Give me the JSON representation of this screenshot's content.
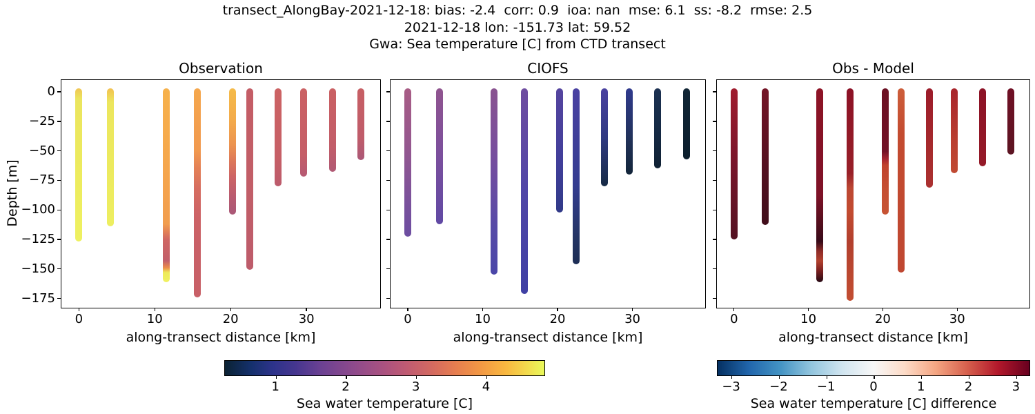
{
  "figure": {
    "title_line1": "transect_AlongBay-2021-12-18: bias: -2.4  corr: 0.9  ioa: nan  mse: 6.1  ss: -8.2  rmse: 2.5",
    "title_line2": "2021-12-18 lon: -151.73 lat: 59.52",
    "title_line3": "Gwa: Sea temperature [C] from CTD transect"
  },
  "chart_data": {
    "type": "scatter",
    "description": "Three-panel CTD transect depth profiles colored by sea water temperature; vertical profile bars at along-transect distances",
    "shared": {
      "xlabel": "along-transect distance [km]",
      "ylabel": "Depth [m]",
      "xticks": [
        0,
        10,
        20,
        30
      ],
      "yticks": [
        0,
        -25,
        -50,
        -75,
        -100,
        -125,
        -150,
        -175
      ],
      "xlim": [
        -2.3,
        39.9
      ],
      "ylim": [
        10,
        -184
      ],
      "grid": false
    },
    "panels": [
      {
        "title": "Observation",
        "profiles": [
          {
            "x_km": 0,
            "depth_top": 0,
            "depth_bottom": -124,
            "gradient": [
              [
                0,
                "#f0c654"
              ],
              [
                7,
                "#ebe55e"
              ],
              [
                60,
                "#edec5e"
              ],
              [
                100,
                "#eef161"
              ]
            ]
          },
          {
            "x_km": 4.2,
            "depth_top": 0,
            "depth_bottom": -111,
            "gradient": [
              [
                0,
                "#f2c150"
              ],
              [
                10,
                "#ece65d"
              ],
              [
                100,
                "#edee60"
              ]
            ]
          },
          {
            "x_km": 11.5,
            "depth_top": 0,
            "depth_bottom": -158,
            "gradient": [
              [
                0,
                "#f6b14b"
              ],
              [
                45,
                "#f5a54d"
              ],
              [
                70,
                "#f19d4e"
              ],
              [
                74,
                "#e28056"
              ],
              [
                78,
                "#cf6663"
              ],
              [
                89,
                "#c25f6a"
              ],
              [
                92.5,
                "#eb8c4b"
              ],
              [
                95,
                "#eeea59"
              ],
              [
                100,
                "#f0f161"
              ]
            ]
          },
          {
            "x_km": 15.6,
            "depth_top": 0,
            "depth_bottom": -171,
            "gradient": [
              [
                0,
                "#f5a74c"
              ],
              [
                30,
                "#f1994f"
              ],
              [
                38,
                "#e48156"
              ],
              [
                48,
                "#d66d60"
              ],
              [
                60,
                "#cd6366"
              ],
              [
                75,
                "#c96067"
              ],
              [
                100,
                "#c86067"
              ]
            ]
          },
          {
            "x_km": 20.3,
            "depth_top": 0,
            "depth_bottom": -101,
            "gradient": [
              [
                0,
                "#f5bb49"
              ],
              [
                25,
                "#f3ab4b"
              ],
              [
                45,
                "#ec9350"
              ],
              [
                57,
                "#dd7959"
              ],
              [
                70,
                "#cd6465"
              ],
              [
                85,
                "#ba5b6f"
              ],
              [
                100,
                "#a95877"
              ]
            ]
          },
          {
            "x_km": 22.5,
            "depth_top": 0,
            "depth_bottom": -148,
            "gradient": [
              [
                0,
                "#c45d66"
              ],
              [
                50,
                "#c25e67"
              ],
              [
                100,
                "#bd5c6b"
              ]
            ]
          },
          {
            "x_km": 26.3,
            "depth_top": 0,
            "depth_bottom": -77,
            "gradient": [
              [
                0,
                "#cc6263"
              ],
              [
                70,
                "#c65f66"
              ],
              [
                100,
                "#bc5b6c"
              ]
            ]
          },
          {
            "x_km": 29.6,
            "depth_top": 0,
            "depth_bottom": -69,
            "gradient": [
              [
                0,
                "#cb6164"
              ],
              [
                75,
                "#c55e67"
              ],
              [
                100,
                "#b55973"
              ]
            ]
          },
          {
            "x_km": 33.4,
            "depth_top": 0,
            "depth_bottom": -65,
            "gradient": [
              [
                0,
                "#ca6063"
              ],
              [
                70,
                "#c25d69"
              ],
              [
                100,
                "#b05974"
              ]
            ]
          },
          {
            "x_km": 37.2,
            "depth_top": 0,
            "depth_bottom": -55,
            "gradient": [
              [
                0,
                "#c75f64"
              ],
              [
                70,
                "#bf5c6a"
              ],
              [
                100,
                "#ab5877"
              ]
            ]
          }
        ]
      },
      {
        "title": "CIOFS",
        "profiles": [
          {
            "x_km": 0,
            "depth_top": 0,
            "depth_bottom": -120,
            "gradient": [
              [
                0,
                "#a85c85"
              ],
              [
                40,
                "#94578f"
              ],
              [
                75,
                "#7b519b"
              ],
              [
                100,
                "#6c4da1"
              ]
            ]
          },
          {
            "x_km": 4.2,
            "depth_top": 0,
            "depth_bottom": -109,
            "gradient": [
              [
                0,
                "#90548f"
              ],
              [
                50,
                "#7b4f9d"
              ],
              [
                100,
                "#6049a4"
              ]
            ]
          },
          {
            "x_km": 11.5,
            "depth_top": 0,
            "depth_bottom": -152,
            "gradient": [
              [
                0,
                "#8a5390"
              ],
              [
                40,
                "#744d9f"
              ],
              [
                75,
                "#564aa7"
              ],
              [
                100,
                "#4a46a8"
              ]
            ]
          },
          {
            "x_km": 15.6,
            "depth_top": 0,
            "depth_bottom": -168,
            "gradient": [
              [
                0,
                "#6f4da0"
              ],
              [
                50,
                "#5046a7"
              ],
              [
                100,
                "#3f40a4"
              ]
            ]
          },
          {
            "x_km": 20.3,
            "depth_top": 0,
            "depth_bottom": -99,
            "gradient": [
              [
                0,
                "#55449f"
              ],
              [
                60,
                "#403e9a"
              ],
              [
                100,
                "#313a88"
              ]
            ]
          },
          {
            "x_km": 22.5,
            "depth_top": 0,
            "depth_bottom": -143,
            "gradient": [
              [
                0,
                "#4a41a2"
              ],
              [
                55,
                "#343c90"
              ],
              [
                85,
                "#233463"
              ],
              [
                100,
                "#1d2e55"
              ]
            ]
          },
          {
            "x_km": 26.3,
            "depth_top": 0,
            "depth_bottom": -77,
            "gradient": [
              [
                0,
                "#4a41a0"
              ],
              [
                50,
                "#303a82"
              ],
              [
                100,
                "#162a45"
              ]
            ]
          },
          {
            "x_km": 29.6,
            "depth_top": 0,
            "depth_bottom": -67,
            "gradient": [
              [
                0,
                "#303a8e"
              ],
              [
                60,
                "#203158"
              ],
              [
                100,
                "#13253a"
              ]
            ]
          },
          {
            "x_km": 33.4,
            "depth_top": 0,
            "depth_bottom": -62,
            "gradient": [
              [
                0,
                "#1c3152"
              ],
              [
                60,
                "#142842"
              ],
              [
                100,
                "#102133"
              ]
            ]
          },
          {
            "x_km": 37.2,
            "depth_top": 0,
            "depth_bottom": -54,
            "gradient": [
              [
                0,
                "#102535"
              ],
              [
                100,
                "#0c1f2d"
              ]
            ]
          }
        ]
      },
      {
        "title": "Obs - Model",
        "profiles": [
          {
            "x_km": 0,
            "depth_top": 0,
            "depth_bottom": -122,
            "gradient": [
              [
                0,
                "#a01c2e"
              ],
              [
                50,
                "#78152a"
              ],
              [
                100,
                "#541222"
              ]
            ]
          },
          {
            "x_km": 4.2,
            "depth_top": 0,
            "depth_bottom": -110,
            "gradient": [
              [
                0,
                "#741426"
              ],
              [
                60,
                "#521020"
              ],
              [
                100,
                "#400d1a"
              ]
            ]
          },
          {
            "x_km": 11.5,
            "depth_top": 0,
            "depth_bottom": -158,
            "gradient": [
              [
                0,
                "#8e1326"
              ],
              [
                55,
                "#7e1227"
              ],
              [
                72,
                "#4c0d1c"
              ],
              [
                79,
                "#370a19"
              ],
              [
                84,
                "#8f2c28"
              ],
              [
                89,
                "#b2412e"
              ],
              [
                94,
                "#7c2020"
              ],
              [
                100,
                "#250914"
              ]
            ]
          },
          {
            "x_km": 15.6,
            "depth_top": 0,
            "depth_bottom": -174,
            "gradient": [
              [
                0,
                "#8c1126"
              ],
              [
                40,
                "#982028"
              ],
              [
                47,
                "#bc4733"
              ],
              [
                58,
                "#c24b30"
              ],
              [
                72,
                "#b2402e"
              ],
              [
                100,
                "#c24e32"
              ]
            ]
          },
          {
            "x_km": 20.3,
            "depth_top": 0,
            "depth_bottom": -101,
            "gradient": [
              [
                0,
                "#6b0f22"
              ],
              [
                50,
                "#731126"
              ],
              [
                56,
                "#a52430"
              ],
              [
                61,
                "#c0432e"
              ],
              [
                80,
                "#c54f33"
              ],
              [
                100,
                "#c75434"
              ]
            ]
          },
          {
            "x_km": 22.5,
            "depth_top": 0,
            "depth_bottom": -150,
            "gradient": [
              [
                0,
                "#cd5e3a"
              ],
              [
                25,
                "#c34b30"
              ],
              [
                100,
                "#bf4731"
              ]
            ]
          },
          {
            "x_km": 26.3,
            "depth_top": 0,
            "depth_bottom": -78,
            "gradient": [
              [
                0,
                "#9c1b2a"
              ],
              [
                60,
                "#a62a2c"
              ],
              [
                100,
                "#ab3130"
              ]
            ]
          },
          {
            "x_km": 29.6,
            "depth_top": 0,
            "depth_bottom": -66,
            "gradient": [
              [
                0,
                "#a8242b"
              ],
              [
                60,
                "#b93d2f"
              ],
              [
                100,
                "#c04a33"
              ]
            ]
          },
          {
            "x_km": 33.4,
            "depth_top": 0,
            "depth_bottom": -60,
            "gradient": [
              [
                0,
                "#8c1226"
              ],
              [
                100,
                "#951a28"
              ]
            ]
          },
          {
            "x_km": 37.2,
            "depth_top": 0,
            "depth_bottom": -50,
            "gradient": [
              [
                0,
                "#701025"
              ],
              [
                100,
                "#5c1422"
              ]
            ]
          }
        ]
      }
    ],
    "colorbars": [
      {
        "label": "Sea water temperature [C]",
        "vmin": 0.27,
        "vmax": 4.84,
        "ticks": [
          1,
          2,
          3,
          4
        ],
        "colormap_name": "thermal",
        "gradient": [
          [
            0,
            "#0b2233"
          ],
          [
            8,
            "#14306b"
          ],
          [
            15,
            "#2d338b"
          ],
          [
            22,
            "#45368f"
          ],
          [
            30,
            "#6b4193"
          ],
          [
            40,
            "#8d4a8c"
          ],
          [
            50,
            "#ab5280"
          ],
          [
            57,
            "#c05b72"
          ],
          [
            65,
            "#d46a60"
          ],
          [
            72,
            "#e67d50"
          ],
          [
            80,
            "#f29844"
          ],
          [
            88,
            "#f9b840"
          ],
          [
            95,
            "#f2dd4e"
          ],
          [
            100,
            "#e9f95b"
          ]
        ]
      },
      {
        "label": "Sea water temperature [C] difference",
        "vmin": -3.3,
        "vmax": 3.3,
        "ticks": [
          -3,
          -2,
          -1,
          0,
          1,
          2,
          3
        ],
        "colormap_name": "RdBu_r",
        "gradient": [
          [
            0,
            "#053061"
          ],
          [
            10,
            "#2166ac"
          ],
          [
            20,
            "#4393c3"
          ],
          [
            30,
            "#92c5de"
          ],
          [
            40,
            "#d1e5f0"
          ],
          [
            50,
            "#f7f7f7"
          ],
          [
            60,
            "#fddbc7"
          ],
          [
            70,
            "#f4a582"
          ],
          [
            80,
            "#d6604d"
          ],
          [
            90,
            "#b2182b"
          ],
          [
            100,
            "#67001f"
          ]
        ]
      }
    ]
  }
}
